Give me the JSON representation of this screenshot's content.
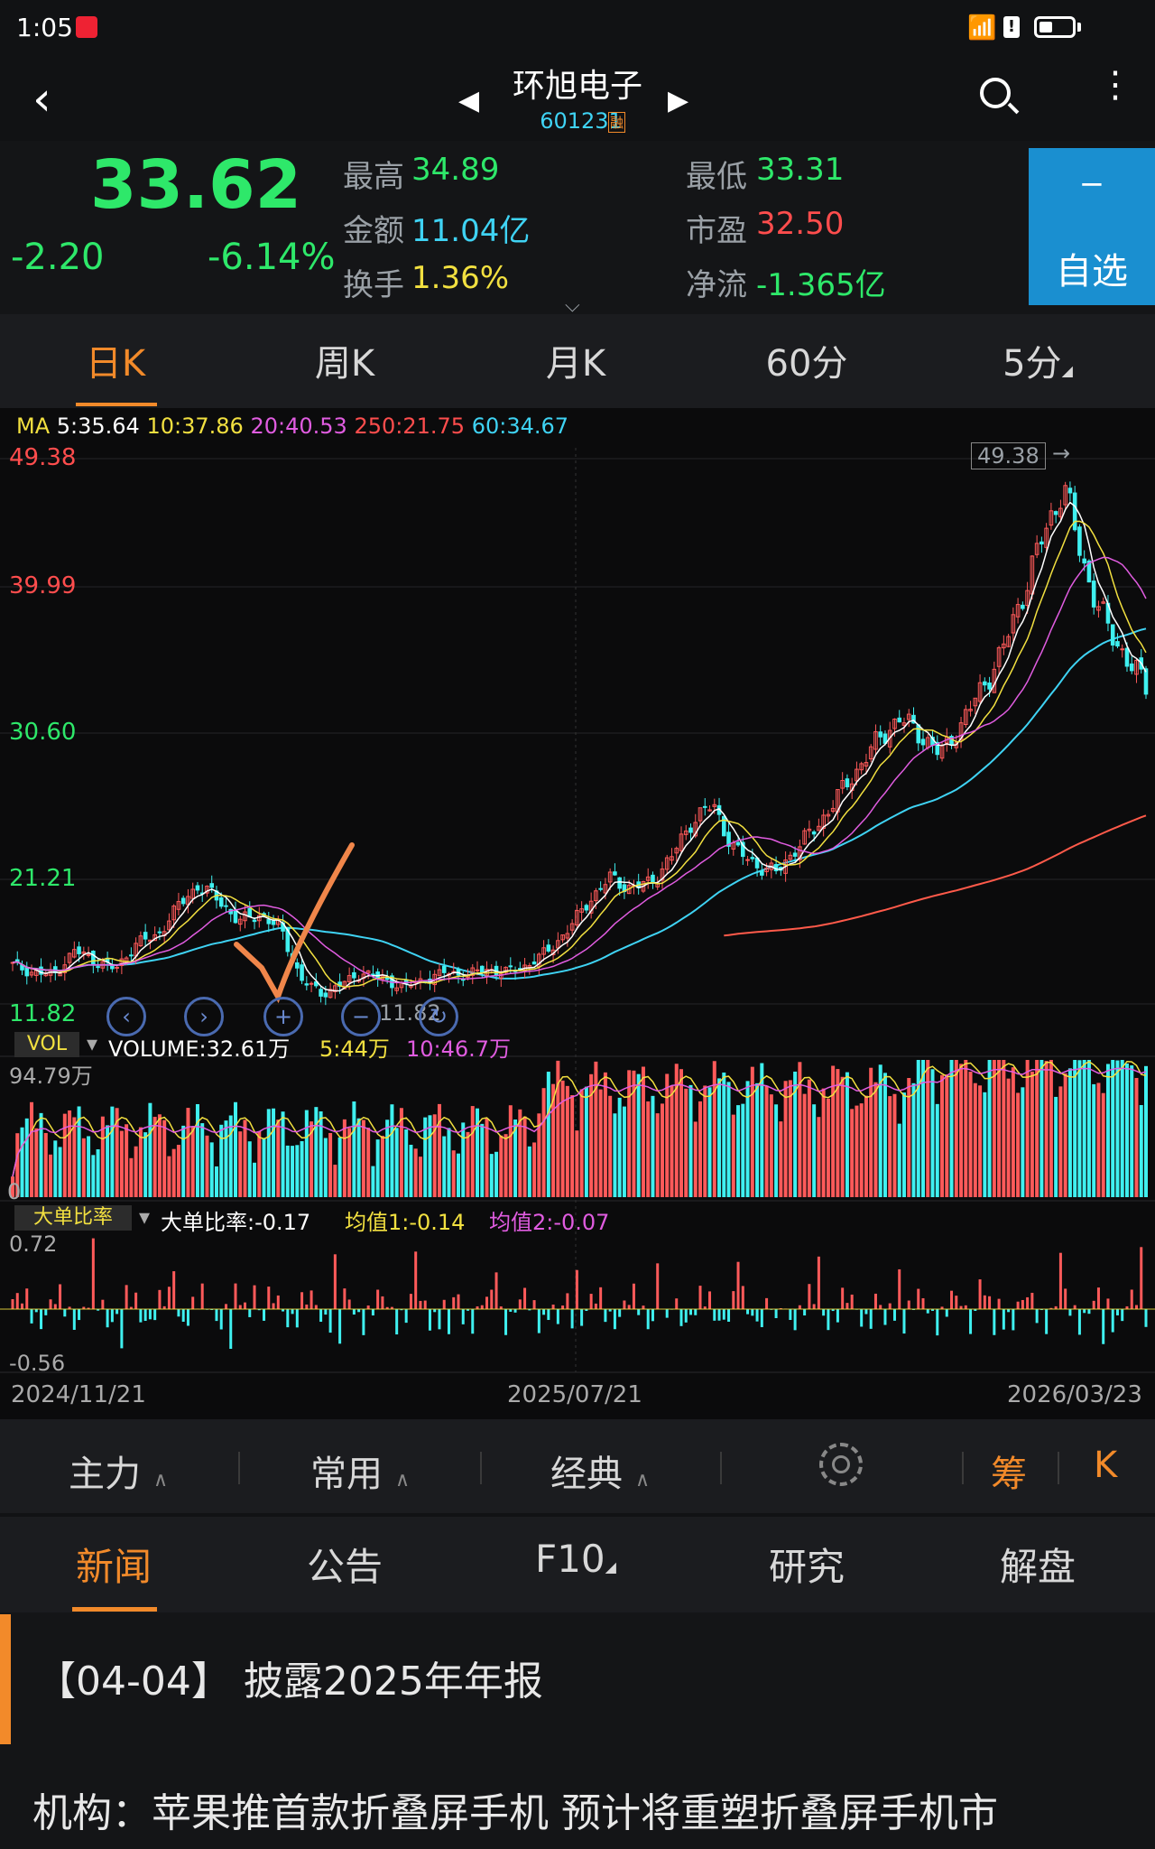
{
  "status_bar": {
    "time": "1:05",
    "app_badge": "头条"
  },
  "header": {
    "stock_name": "环旭电子",
    "stock_code": "601231",
    "margin_tag": "融"
  },
  "quote": {
    "price": "33.62",
    "change": "-2.20",
    "change_pct": "-6.14%",
    "high_label": "最高",
    "high": "34.89",
    "low_label": "最低",
    "low": "33.31",
    "amount_label": "金额",
    "amount": "11.04亿",
    "pe_label": "市盈",
    "pe": "32.50",
    "turnover_label": "换手",
    "turnover": "1.36%",
    "netflow_label": "净流",
    "netflow": "-1.365亿",
    "fav_minus": "−",
    "fav_label": "自选",
    "colors": {
      "up": "#ff4d4d",
      "down": "#2ee86a",
      "yellow": "#f2e040",
      "cyan": "#3fd3f4"
    }
  },
  "period_tabs": [
    "日K",
    "周K",
    "月K",
    "60分",
    "5分"
  ],
  "active_period": "日K",
  "ma_legend": {
    "prefix": "MA",
    "ma5": "5:35.64",
    "ma10": "10:37.86",
    "ma20": "20:40.53",
    "ma250": "250:21.75",
    "ma60": "60:34.67"
  },
  "price_axis": [
    "49.38",
    "39.99",
    "30.60",
    "21.21",
    "11.82"
  ],
  "high_marker": "49.38",
  "low_marker": "11.82",
  "volume": {
    "label": "VOL",
    "value": "VOLUME:32.61万",
    "ma5": "5:44万",
    "ma10": "10:46.7万",
    "max": "94.79万",
    "zero": "0"
  },
  "ratio": {
    "label": "大单比率",
    "value": "大单比率:-0.17",
    "avg1": "均值1:-0.14",
    "avg2": "均值2:-0.07",
    "max": "0.72",
    "min": "-0.56"
  },
  "dates": [
    "2024/11/21",
    "2025/07/21",
    "2026/03/23"
  ],
  "tools": {
    "main": "主力",
    "common": "常用",
    "classic": "经典",
    "chip": "筹",
    "k": "K"
  },
  "news_tabs": [
    "新闻",
    "公告",
    "F10",
    "研究",
    "解盘"
  ],
  "news": {
    "headline": "【04-04】 披露2025年年报",
    "item": "机构：苹果推首款折叠屏手机 预计将重塑折叠屏手机市"
  },
  "chart_data": {
    "type": "candlestick",
    "ylim": [
      11.82,
      49.38
    ],
    "x_range": [
      "2024/11/21",
      "2026/03/23"
    ],
    "close_approx": [
      14.5,
      14.0,
      13.8,
      15.5,
      14.8,
      14.2,
      16.0,
      16.5,
      18.5,
      20.0,
      19.0,
      17.5,
      18.0,
      17.0,
      13.5,
      12.5,
      13.2,
      14.0,
      13.5,
      13.0,
      13.5,
      14.0,
      13.8,
      14.2,
      14.0,
      14.5,
      15.5,
      17.0,
      19.0,
      20.5,
      19.8,
      20.2,
      22.0,
      24.5,
      25.5,
      22.5,
      21.5,
      20.8,
      22.5,
      24.0,
      26.0,
      28.0,
      30.0,
      31.5,
      30.5,
      29.0,
      31.0,
      33.5,
      36.0,
      40.0,
      44.0,
      47.5,
      42.0,
      38.0,
      35.8,
      33.62
    ]
  }
}
